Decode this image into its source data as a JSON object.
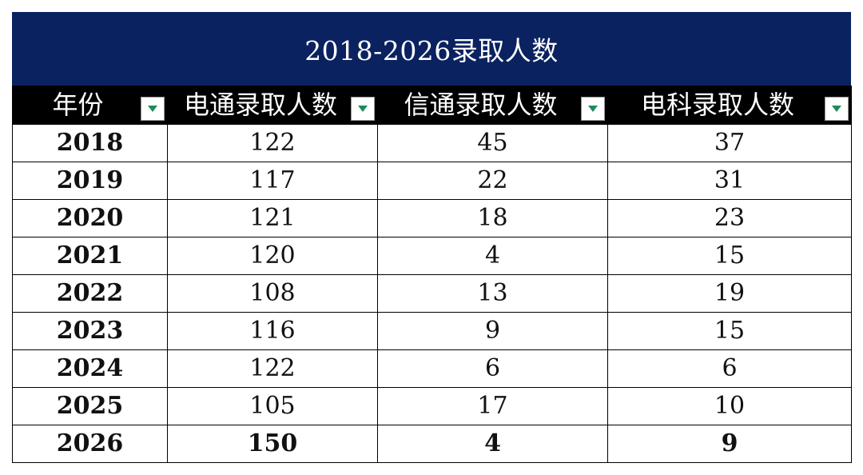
{
  "title": "2018-2026录取人数",
  "headers": [
    "年份",
    "电通录取人数",
    "信通录取人数",
    "电科录取人数"
  ],
  "rows": [
    {
      "year": "2018",
      "dt": "122",
      "xt": "45",
      "dk": "37",
      "bold": false
    },
    {
      "year": "2019",
      "dt": "117",
      "xt": "22",
      "dk": "31",
      "bold": false
    },
    {
      "year": "2020",
      "dt": "121",
      "xt": "18",
      "dk": "23",
      "bold": false
    },
    {
      "year": "2021",
      "dt": "120",
      "xt": "4",
      "dk": "15",
      "bold": false
    },
    {
      "year": "2022",
      "dt": "108",
      "xt": "13",
      "dk": "19",
      "bold": false
    },
    {
      "year": "2023",
      "dt": "116",
      "xt": "9",
      "dk": "15",
      "bold": false
    },
    {
      "year": "2024",
      "dt": "122",
      "xt": "6",
      "dk": "6",
      "bold": false
    },
    {
      "year": "2025",
      "dt": "105",
      "xt": "17",
      "dk": "10",
      "bold": false
    },
    {
      "year": "2026",
      "dt": "150",
      "xt": "4",
      "dk": "9",
      "bold": true
    }
  ],
  "colors": {
    "title_bg": "#0b2260",
    "header_bg": "#000000",
    "filter_arrow": "#1e8a5c"
  },
  "icons": {
    "filter": "filter-dropdown-icon"
  }
}
